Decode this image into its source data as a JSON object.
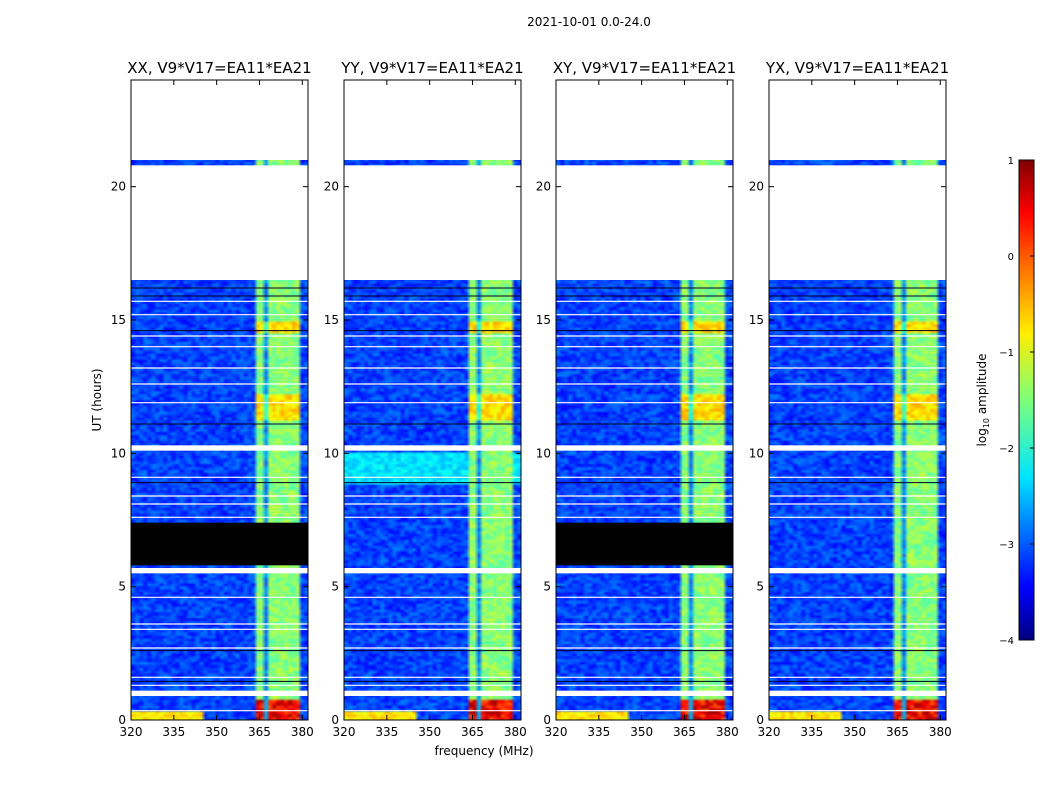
{
  "chart_data": {
    "type": "heatmap",
    "suptitle": "2021-10-01 0.0-24.0",
    "xlabel": "frequency (MHz)",
    "ylabel": "UT (hours)",
    "xlim": [
      320,
      382
    ],
    "ylim": [
      0,
      24
    ],
    "xticks": [
      "320",
      "335",
      "350",
      "365",
      "380"
    ],
    "yticks": [
      "0",
      "5",
      "10",
      "15",
      "20"
    ],
    "colorbar": {
      "label": "log",
      "label_sub": "10",
      "label_rest": " amplitude",
      "range": [
        -4,
        1
      ],
      "ticks": [
        "1",
        "0",
        "−1",
        "−2",
        "−3",
        "−4"
      ],
      "colormap": "jet"
    },
    "data_gap_hours": [
      [
        21.0,
        24.0
      ],
      [
        16.5,
        20.8
      ],
      [
        10.1,
        10.3
      ],
      [
        5.5,
        5.7
      ],
      [
        0.9,
        1.1
      ]
    ],
    "active_band_mhz": [
      363,
      379
    ],
    "panels": [
      {
        "title": "XX, V9*V17=EA11*EA21",
        "polarization": "XX",
        "no_data_hours": [
          5.8,
          7.4
        ]
      },
      {
        "title": "YY, V9*V17=EA11*EA21",
        "polarization": "YY",
        "no_data_hours": null
      },
      {
        "title": "XY, V9*V17=EA11*EA21",
        "polarization": "XY",
        "no_data_hours": [
          5.8,
          7.4
        ]
      },
      {
        "title": "YX, V9*V17=EA11*EA21",
        "polarization": "YX",
        "no_data_hours": null
      }
    ]
  }
}
